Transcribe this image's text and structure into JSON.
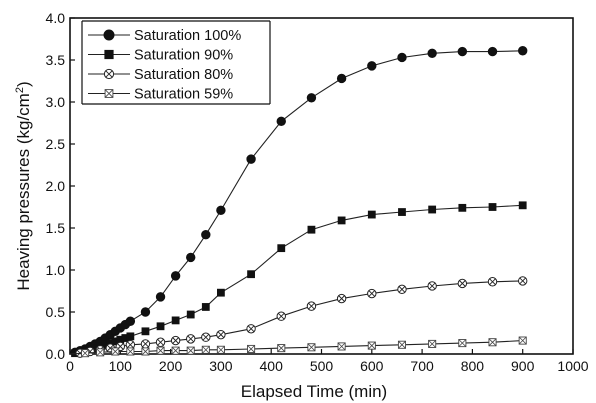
{
  "chart_data": {
    "type": "line",
    "xlabel": "Elapsed Time (min)",
    "ylabel_main": "Heaving pressures (kg/cm",
    "ylabel_sup": "2",
    "ylabel_end": ")",
    "xlim": [
      0,
      1000
    ],
    "ylim": [
      0.0,
      4.0
    ],
    "x_ticks": [
      "0",
      "100",
      "200",
      "300",
      "400",
      "500",
      "600",
      "700",
      "800",
      "900",
      "1000"
    ],
    "y_ticks": [
      "0.0",
      "0.5",
      "1.0",
      "1.5",
      "2.0",
      "2.5",
      "3.0",
      "3.5",
      "4.0"
    ],
    "grid": false,
    "legend_position": "top-left",
    "series": [
      {
        "name": "Saturation 100%",
        "marker": "filled-circle",
        "x": [
          0,
          10,
          20,
          30,
          40,
          50,
          60,
          70,
          80,
          90,
          100,
          110,
          120,
          150,
          180,
          210,
          240,
          270,
          300,
          360,
          420,
          480,
          540,
          600,
          660,
          720,
          780,
          840,
          900
        ],
        "y": [
          0.0,
          0.02,
          0.04,
          0.06,
          0.09,
          0.12,
          0.15,
          0.19,
          0.23,
          0.27,
          0.31,
          0.35,
          0.39,
          0.5,
          0.68,
          0.93,
          1.15,
          1.42,
          1.71,
          2.32,
          2.77,
          3.05,
          3.28,
          3.43,
          3.53,
          3.58,
          3.6,
          3.6,
          3.61
        ]
      },
      {
        "name": "Saturation 90%",
        "marker": "filled-square",
        "x": [
          0,
          10,
          20,
          30,
          40,
          50,
          60,
          70,
          80,
          90,
          100,
          110,
          120,
          150,
          180,
          210,
          240,
          270,
          300,
          360,
          420,
          480,
          540,
          600,
          660,
          720,
          780,
          840,
          900
        ],
        "y": [
          0.0,
          0.01,
          0.02,
          0.03,
          0.05,
          0.07,
          0.09,
          0.11,
          0.13,
          0.15,
          0.17,
          0.19,
          0.21,
          0.27,
          0.33,
          0.4,
          0.47,
          0.56,
          0.73,
          0.95,
          1.26,
          1.48,
          1.59,
          1.66,
          1.69,
          1.72,
          1.74,
          1.75,
          1.77
        ]
      },
      {
        "name": "Saturation 80%",
        "marker": "circle-x",
        "x": [
          0,
          20,
          40,
          60,
          80,
          100,
          120,
          150,
          180,
          210,
          240,
          270,
          300,
          360,
          420,
          480,
          540,
          600,
          660,
          720,
          780,
          840,
          900
        ],
        "y": [
          0.0,
          0.01,
          0.03,
          0.05,
          0.07,
          0.09,
          0.11,
          0.12,
          0.14,
          0.16,
          0.18,
          0.2,
          0.23,
          0.3,
          0.45,
          0.57,
          0.66,
          0.72,
          0.77,
          0.81,
          0.84,
          0.86,
          0.87
        ]
      },
      {
        "name": "Saturation 59%",
        "marker": "square-x",
        "x": [
          0,
          30,
          60,
          90,
          120,
          150,
          180,
          210,
          240,
          270,
          300,
          360,
          420,
          480,
          540,
          600,
          660,
          720,
          780,
          840,
          900
        ],
        "y": [
          0.0,
          0.01,
          0.02,
          0.03,
          0.03,
          0.03,
          0.04,
          0.04,
          0.04,
          0.05,
          0.05,
          0.06,
          0.07,
          0.08,
          0.09,
          0.1,
          0.11,
          0.12,
          0.13,
          0.14,
          0.16
        ]
      }
    ]
  }
}
